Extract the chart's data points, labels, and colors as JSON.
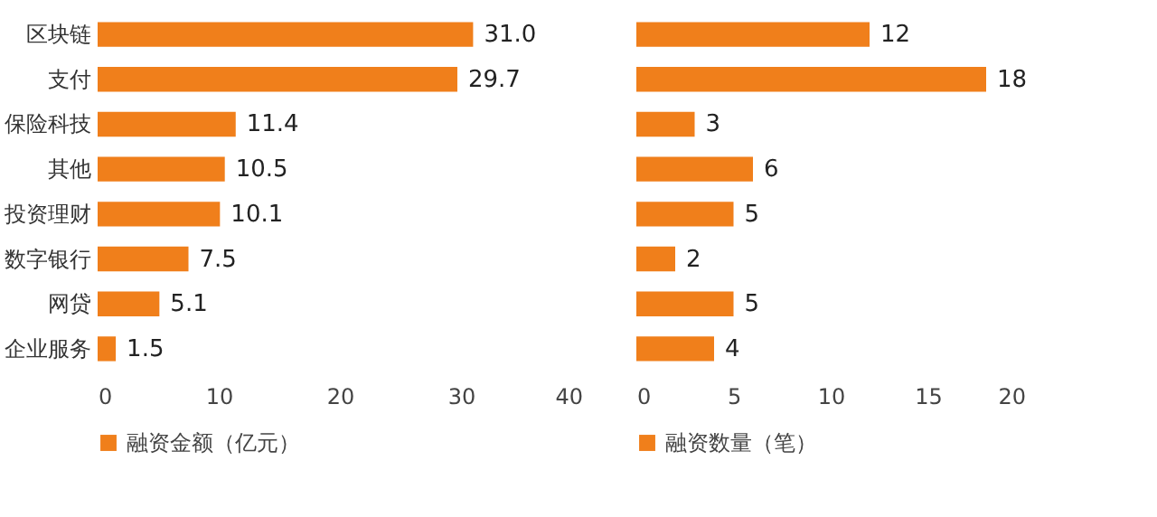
{
  "chart_data": [
    {
      "type": "bar",
      "orientation": "horizontal",
      "categories": [
        "区块链",
        "支付",
        "保险科技",
        "其他",
        "投资理财",
        "数字银行",
        "网贷",
        "企业服务"
      ],
      "series": [
        {
          "name": "融资金额（亿元）",
          "color": "#f07f1b",
          "values": [
            31.0,
            29.7,
            11.4,
            10.5,
            10.1,
            7.5,
            5.1,
            1.5
          ],
          "value_labels": [
            "31.0",
            "29.7",
            "11.4",
            "10.5",
            "10.1",
            "7.5",
            "5.1",
            "1.5"
          ]
        }
      ],
      "xlim": [
        0,
        40
      ],
      "xticks": [
        0,
        10,
        20,
        30,
        40
      ],
      "legend": "bottom"
    },
    {
      "type": "bar",
      "orientation": "horizontal",
      "categories": [
        null,
        null,
        null,
        null,
        null,
        null,
        null,
        null
      ],
      "series": [
        {
          "name": "融资数量（笔）",
          "color": "#f07f1b",
          "values": [
            12,
            18,
            3,
            6,
            5,
            2,
            5,
            4
          ]
        }
      ],
      "data_labels": true,
      "xlim": [
        0,
        20
      ],
      "xticks": [
        0,
        5,
        10,
        15,
        20
      ],
      "tick_labels": "x",
      "legend": "bottom"
    }
  ]
}
